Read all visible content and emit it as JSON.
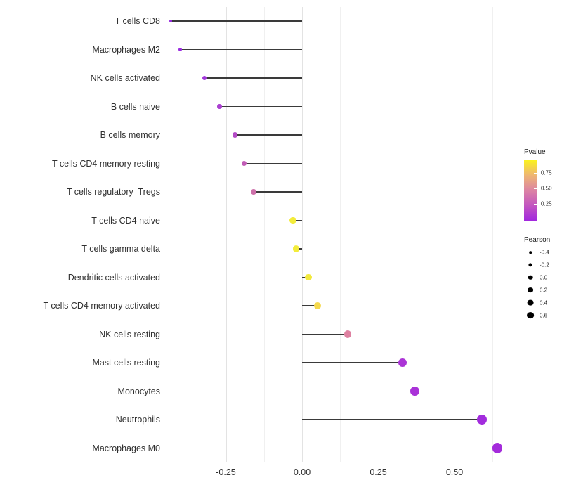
{
  "chart_data": {
    "type": "lollipop",
    "title": "",
    "xlabel": "",
    "ylabel": "",
    "x_ticks": [
      -0.25,
      0.0,
      0.25,
      0.5
    ],
    "x_tick_labels": [
      "-0.25",
      "0.00",
      "0.25",
      "0.50"
    ],
    "grid_minor": [
      -0.375,
      -0.125,
      0.125,
      0.375,
      0.625
    ],
    "xlim": [
      -0.445,
      0.652
    ],
    "baseline": 0.0,
    "grid": "vertical-only",
    "legend_position": "right",
    "categories": [
      "T cells CD8",
      "Macrophages M2",
      "NK cells activated",
      "B cells naive",
      "B cells memory",
      "T cells CD4 memory resting",
      "T cells regulatory  Tregs",
      "T cells CD4 naive",
      "T cells gamma delta",
      "Dendritic cells activated",
      "T cells CD4 memory activated",
      "NK cells resting",
      "Mast cells resting",
      "Monocytes",
      "Neutrophils",
      "Macrophages M0"
    ],
    "series": [
      {
        "name": "Pearson",
        "values": [
          -0.43,
          -0.4,
          -0.32,
          -0.27,
          -0.22,
          -0.19,
          -0.16,
          -0.03,
          -0.02,
          0.02,
          0.05,
          0.15,
          0.33,
          0.37,
          0.59,
          0.64
        ]
      }
    ],
    "point_colors": [
      "#982BE1",
      "#9A2CE0",
      "#A136DA",
      "#AB41D1",
      "#B44CC6",
      "#C15CB6",
      "#CD70AA",
      "#F3EC3B",
      "#F3EC3B",
      "#F2E93E",
      "#F5D94E",
      "#DE81A1",
      "#AB34D6",
      "#A932D8",
      "#A22CDD",
      "#A42BDB"
    ],
    "stick_color": "#3a3a3a",
    "legend_pvalue": {
      "title": "Pvalue",
      "tick_labels": [
        "0.75",
        "0.50",
        "0.25"
      ],
      "gradient_top_to_bottom": [
        "#FAF21F",
        "#EEB573",
        "#DC83A4",
        "#C255C0",
        "#A228DE"
      ]
    },
    "legend_pearson": {
      "title": "Pearson",
      "entries": [
        {
          "label": "-0.4",
          "diameter": 3.6
        },
        {
          "label": "-0.2",
          "diameter": 5.2
        },
        {
          "label": "0.0",
          "diameter": 6.6
        },
        {
          "label": "0.2",
          "diameter": 7.8
        },
        {
          "label": "0.4",
          "diameter": 8.8
        },
        {
          "label": "0.6",
          "diameter": 9.8
        }
      ],
      "dot_color": "#000000"
    }
  }
}
